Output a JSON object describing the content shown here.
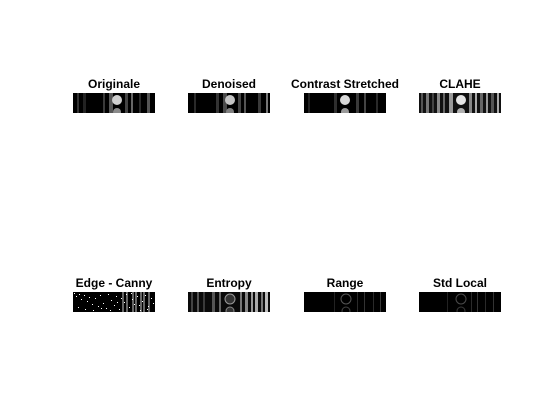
{
  "figure": {
    "background": "#ffffff",
    "panels": [
      {
        "title": "Originale",
        "style": "originale"
      },
      {
        "title": "Denoised",
        "style": "denoised"
      },
      {
        "title": "Contrast Stretched",
        "style": "contrast"
      },
      {
        "title": "CLAHE",
        "style": "clahe"
      },
      {
        "title": "Edge - Canny",
        "style": "canny"
      },
      {
        "title": "Entropy",
        "style": "entropy"
      },
      {
        "title": "Range",
        "style": "range"
      },
      {
        "title": "Std Local",
        "style": "stdlocal"
      }
    ]
  }
}
